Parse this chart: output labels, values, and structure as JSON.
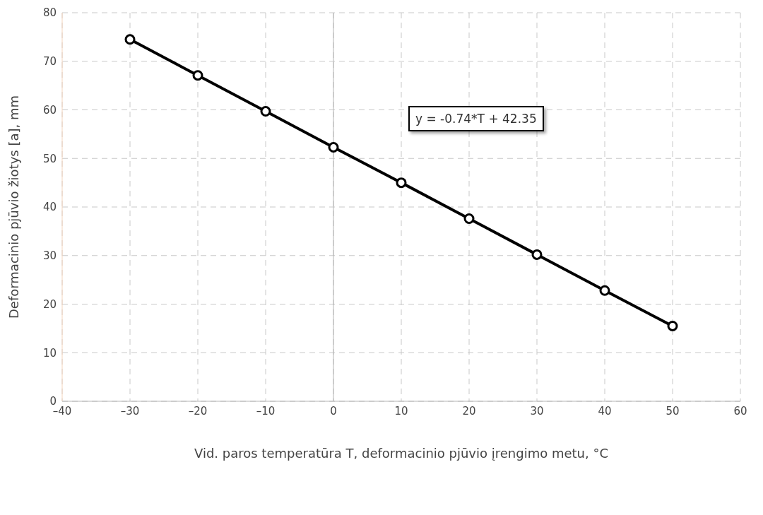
{
  "chart_data": {
    "type": "line",
    "xlabel": "Vid. paros temperatūra T, deformacinio pjūvio įrengimo metu, °C",
    "ylabel": "Deformacinio pjūvio žiotys [a], mm",
    "x": [
      -30,
      -20,
      -10,
      0,
      10,
      20,
      30,
      40,
      50
    ],
    "series": [
      {
        "color": "#000000",
        "values": [
          74.5,
          67.1,
          59.7,
          52.3,
          45.0,
          37.6,
          30.2,
          22.8,
          15.5
        ]
      }
    ],
    "xlim": [
      -40,
      60
    ],
    "xticks": [
      {
        "value": -40,
        "label": "–40"
      },
      {
        "value": -30,
        "label": "–30"
      },
      {
        "value": -20,
        "label": "–20"
      },
      {
        "value": -10,
        "label": "–10"
      },
      0,
      10,
      20,
      30,
      40,
      50,
      60
    ],
    "ylim": [
      0,
      80
    ],
    "yticks": [
      0,
      10,
      20,
      30,
      40,
      50,
      60,
      70,
      80
    ],
    "grid": true,
    "marker": "circle",
    "line_style": "solid",
    "ref_lines": [
      {
        "axis": "x",
        "value": 0,
        "color": "#b4b4b4"
      }
    ],
    "annotations": [
      "y = -0.74*T + 42.35"
    ]
  }
}
